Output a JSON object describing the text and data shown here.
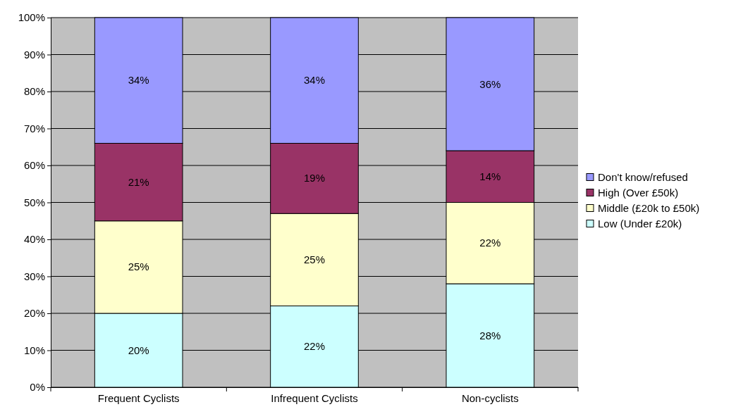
{
  "chart_data": {
    "type": "bar",
    "stacked": true,
    "categories": [
      "Frequent Cyclists",
      "Infrequent Cyclists",
      "Non-cyclists"
    ],
    "series": [
      {
        "name": "Low (Under £20k)",
        "color": "#ccffff",
        "values": [
          20,
          22,
          28
        ],
        "value_labels": [
          "20%",
          "22%",
          "28%"
        ]
      },
      {
        "name": "Middle (£20k to £50k)",
        "color": "#ffffcc",
        "values": [
          25,
          25,
          22
        ],
        "value_labels": [
          "25%",
          "25%",
          "22%"
        ]
      },
      {
        "name": "High (Over £50k)",
        "color": "#993366",
        "values": [
          21,
          19,
          14
        ],
        "value_labels": [
          "21%",
          "19%",
          "14%"
        ]
      },
      {
        "name": "Don't know/refused",
        "color": "#9999ff",
        "values": [
          34,
          34,
          36
        ],
        "value_labels": [
          "34%",
          "34%",
          "36%"
        ]
      }
    ],
    "ylim": [
      0,
      100
    ],
    "yticks": [
      {
        "value": 0,
        "label": "0%"
      },
      {
        "value": 10,
        "label": "10%"
      },
      {
        "value": 20,
        "label": "20%"
      },
      {
        "value": 30,
        "label": "30%"
      },
      {
        "value": 40,
        "label": "40%"
      },
      {
        "value": 50,
        "label": "50%"
      },
      {
        "value": 60,
        "label": "60%"
      },
      {
        "value": 70,
        "label": "70%"
      },
      {
        "value": 80,
        "label": "80%"
      },
      {
        "value": 90,
        "label": "90%"
      },
      {
        "value": 100,
        "label": "100%"
      }
    ],
    "grid": "y",
    "legend": "right"
  }
}
